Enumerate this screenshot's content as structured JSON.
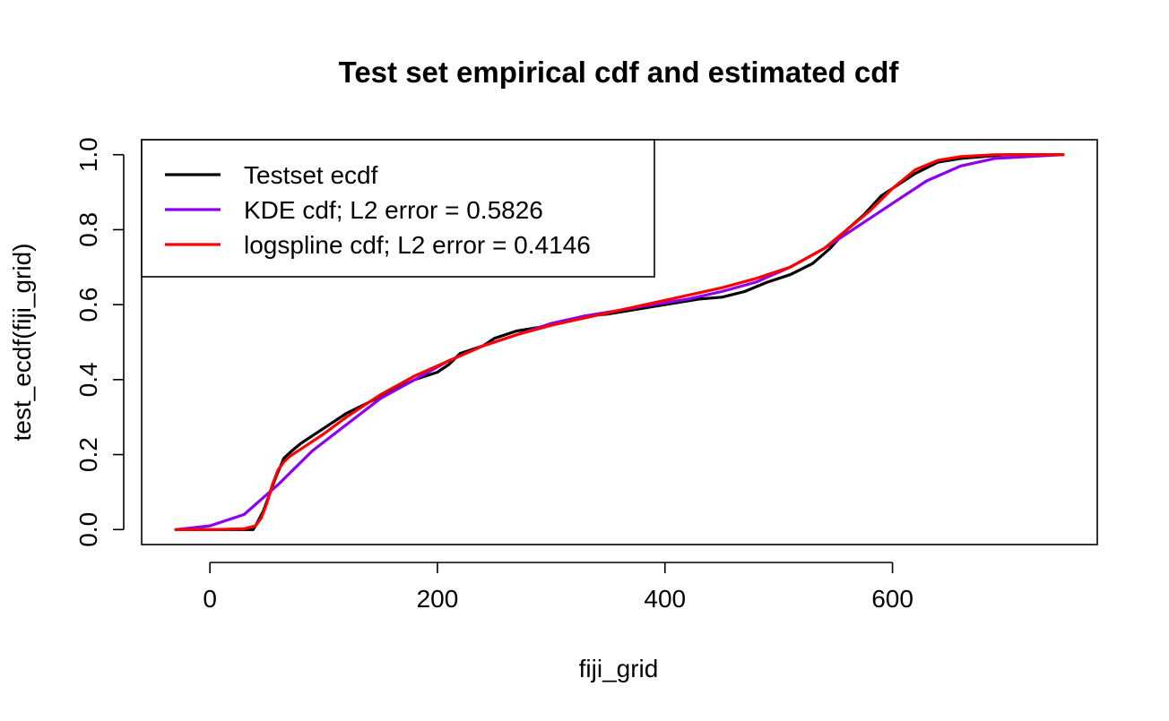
{
  "chart_data": {
    "type": "line",
    "title": "Test set empirical cdf and estimated cdf",
    "xlabel": "fiji_grid",
    "ylabel": "test_ecdf(fiji_grid)",
    "xlim": [
      -60,
      780
    ],
    "ylim": [
      -0.04,
      1.04
    ],
    "x_ticks": [
      0,
      200,
      400,
      600
    ],
    "y_ticks": [
      0.0,
      0.2,
      0.4,
      0.6,
      0.8,
      1.0
    ],
    "x_tick_labels": [
      "0",
      "200",
      "400",
      "600"
    ],
    "y_tick_labels": [
      "0.0",
      "0.2",
      "0.4",
      "0.6",
      "0.8",
      "1.0"
    ],
    "grid": false,
    "legend_position": "top-left",
    "series": [
      {
        "name": "Testset ecdf",
        "color": "#000000",
        "x": [
          -30,
          10,
          38,
          42,
          47,
          52,
          58,
          65,
          72,
          80,
          90,
          100,
          120,
          140,
          160,
          180,
          200,
          210,
          220,
          240,
          250,
          270,
          290,
          310,
          330,
          350,
          370,
          390,
          410,
          430,
          450,
          470,
          490,
          510,
          530,
          545,
          560,
          575,
          590,
          605,
          620,
          640,
          660,
          700,
          750
        ],
        "y": [
          0.0,
          0.0,
          0.0,
          0.02,
          0.05,
          0.09,
          0.14,
          0.19,
          0.21,
          0.23,
          0.25,
          0.27,
          0.31,
          0.34,
          0.37,
          0.4,
          0.42,
          0.44,
          0.47,
          0.49,
          0.51,
          0.53,
          0.54,
          0.555,
          0.57,
          0.575,
          0.585,
          0.595,
          0.605,
          0.615,
          0.62,
          0.635,
          0.66,
          0.68,
          0.71,
          0.75,
          0.8,
          0.84,
          0.89,
          0.92,
          0.95,
          0.98,
          0.99,
          1.0,
          1.0
        ]
      },
      {
        "name": "KDE cdf; L2 error = 0.5826",
        "color": "#8B00EE",
        "x": [
          -30,
          0,
          30,
          60,
          90,
          120,
          150,
          180,
          210,
          240,
          270,
          300,
          330,
          360,
          390,
          420,
          450,
          480,
          510,
          540,
          570,
          600,
          630,
          660,
          690,
          720,
          750
        ],
        "y": [
          0.0,
          0.01,
          0.04,
          0.12,
          0.21,
          0.28,
          0.35,
          0.4,
          0.45,
          0.49,
          0.52,
          0.55,
          0.57,
          0.585,
          0.6,
          0.615,
          0.635,
          0.66,
          0.7,
          0.75,
          0.81,
          0.87,
          0.93,
          0.97,
          0.99,
          0.995,
          1.0
        ]
      },
      {
        "name": "logspline cdf; L2 error = 0.4146",
        "color": "#FF0000",
        "x": [
          -30,
          0,
          30,
          40,
          45,
          50,
          55,
          60,
          65,
          70,
          80,
          90,
          100,
          120,
          150,
          180,
          210,
          240,
          270,
          300,
          330,
          360,
          390,
          420,
          450,
          480,
          510,
          540,
          560,
          580,
          600,
          620,
          640,
          660,
          690,
          720,
          750
        ],
        "y": [
          0.0,
          0.0,
          0.002,
          0.01,
          0.03,
          0.07,
          0.12,
          0.16,
          0.18,
          0.195,
          0.215,
          0.235,
          0.255,
          0.3,
          0.36,
          0.41,
          0.45,
          0.49,
          0.52,
          0.545,
          0.565,
          0.585,
          0.605,
          0.625,
          0.645,
          0.67,
          0.7,
          0.75,
          0.8,
          0.85,
          0.91,
          0.96,
          0.985,
          0.995,
          1.0,
          1.0,
          1.0
        ]
      }
    ]
  }
}
